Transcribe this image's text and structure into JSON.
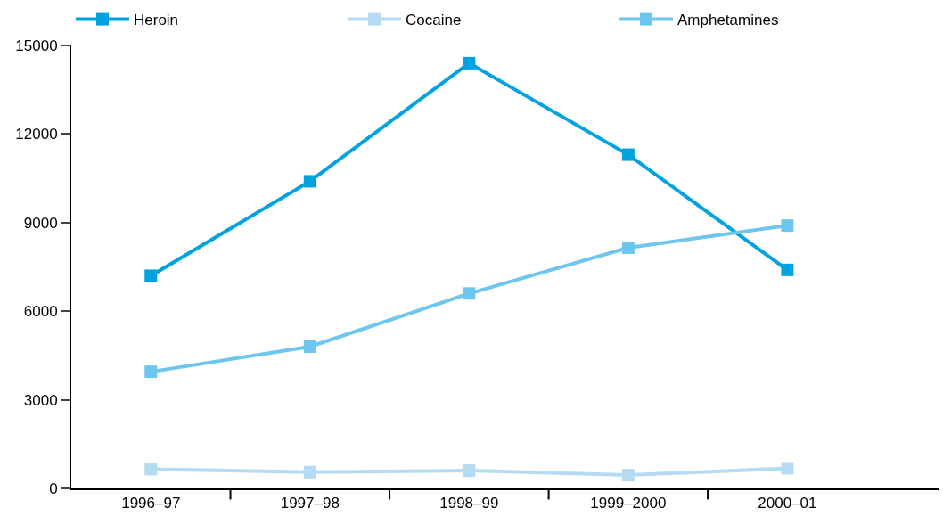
{
  "chart_data": {
    "type": "line",
    "categories": [
      "1996–97",
      "1997–98",
      "1998–99",
      "1999–2000",
      "2000–01"
    ],
    "series": [
      {
        "name": "Heroin",
        "color": "#00a3e0",
        "values": [
          7200,
          10400,
          14400,
          11300,
          7400
        ]
      },
      {
        "name": "Cocaine",
        "color": "#b5dbf2",
        "values": [
          650,
          550,
          600,
          450,
          680
        ]
      },
      {
        "name": "Amphetamines",
        "color": "#6ec6ee",
        "values": [
          3950,
          4800,
          6600,
          8150,
          8900
        ]
      }
    ],
    "ylim": [
      0,
      15000
    ],
    "yticks": [
      0,
      3000,
      6000,
      9000,
      12000,
      15000
    ],
    "legend": "top left",
    "marker": "square",
    "line_style": "solid"
  }
}
